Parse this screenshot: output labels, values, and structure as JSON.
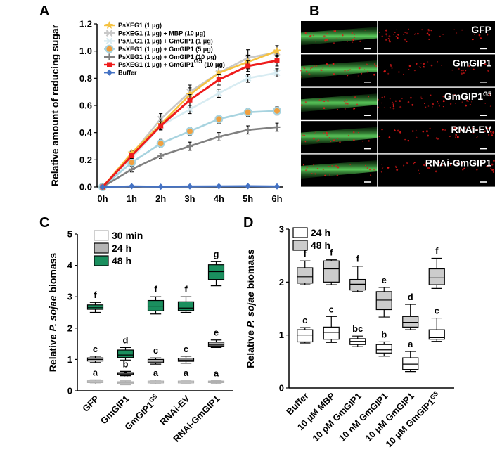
{
  "panel_letters": {
    "a": "A",
    "b": "B",
    "c": "C",
    "d": "D"
  },
  "chart_data": [
    {
      "id": "A",
      "type": "line",
      "ylabel": "Relative amount of reducing sugar",
      "xlabel": "",
      "categories": [
        "0h",
        "1h",
        "2h",
        "3h",
        "4h",
        "5h",
        "6h"
      ],
      "ylim": [
        0,
        1.2
      ],
      "yticks": [
        "0.0",
        "0.2",
        "0.4",
        "0.6",
        "0.8",
        "1.0",
        "1.2"
      ],
      "legend_position": "top-left",
      "series": [
        {
          "name": "PsXEG1 (1 μg)",
          "color": "#f5c242",
          "marker": "star",
          "values": [
            0,
            0.25,
            0.46,
            0.68,
            0.84,
            0.92,
            1.0
          ],
          "errors": [
            0,
            0.02,
            0.04,
            0.05,
            0.05,
            0.05,
            0.04
          ]
        },
        {
          "name": "PsXEG1 (1 μg) + MBP (10 μg)",
          "color": "#c8c8c8",
          "marker": "cross",
          "values": [
            0,
            0.24,
            0.5,
            0.7,
            0.84,
            0.95,
            0.99
          ],
          "errors": [
            0,
            0.02,
            0.04,
            0.05,
            0.06,
            0.06,
            0.05
          ]
        },
        {
          "name": "PsXEG1 (1 μg) + GmGIP1 (1 μg)",
          "color": "#d8ecf2",
          "marker": "cross",
          "values": [
            0,
            0.21,
            0.45,
            0.57,
            0.69,
            0.8,
            0.84
          ],
          "errors": [
            0,
            0.02,
            0.03,
            0.03,
            0.03,
            0.03,
            0.03
          ]
        },
        {
          "name": "PsXEG1 (1 μg) + GmGIP1 (5 μg)",
          "color": "#a7d3df",
          "marker": "circle",
          "values": [
            0,
            0.18,
            0.32,
            0.41,
            0.5,
            0.55,
            0.56
          ],
          "errors": [
            0,
            0.02,
            0.03,
            0.03,
            0.03,
            0.03,
            0.03
          ]
        },
        {
          "name": "PsXEG1 (1 μg) + GmGIP1 (10 μg)",
          "color": "#808080",
          "marker": "plus",
          "values": [
            0,
            0.13,
            0.23,
            0.3,
            0.37,
            0.42,
            0.44
          ],
          "errors": [
            0,
            0.02,
            0.02,
            0.03,
            0.03,
            0.03,
            0.03
          ]
        },
        {
          "name": "PsXEG1 (1 μg) + GmGIP1",
          "name_sup": "G5",
          "name_suffix": " (10 μg)",
          "color": "#ee1c1c",
          "marker": "square",
          "values": [
            0,
            0.23,
            0.45,
            0.64,
            0.79,
            0.89,
            0.93
          ],
          "errors": [
            0,
            0.02,
            0.03,
            0.04,
            0.04,
            0.04,
            0.04
          ]
        },
        {
          "name": "Buffer",
          "color": "#4472c4",
          "marker": "diamond",
          "values": [
            0,
            0.005,
            0.002,
            0.004,
            0.005,
            0.006,
            0.004
          ],
          "errors": [
            0,
            0,
            0,
            0,
            0,
            0,
            0
          ]
        }
      ]
    },
    {
      "id": "C",
      "type": "box",
      "ylabel_pre": "Relative ",
      "ylabel_italic": "P. sojae",
      "ylabel_post": " biomass",
      "ylim": [
        0,
        5
      ],
      "yticks": [
        "0",
        "1",
        "2",
        "3",
        "4",
        "5"
      ],
      "legend_position": "top-left",
      "categories": [
        {
          "label": "GFP"
        },
        {
          "label": "GmGIP1"
        },
        {
          "label": "GmGIP1",
          "sup": "G5"
        },
        {
          "label": "RNAi-EV"
        },
        {
          "label": "RNAi-GmGIP1"
        }
      ],
      "series": [
        {
          "name": "30 min",
          "fill": "#ffffff",
          "stroke": "#b0b0b0",
          "boxes": [
            {
              "min": 0.22,
              "q1": 0.26,
              "median": 0.29,
              "q3": 0.32,
              "max": 0.35,
              "sig": "a"
            },
            {
              "min": 0.19,
              "q1": 0.23,
              "median": 0.26,
              "q3": 0.29,
              "max": 0.32,
              "sig": "a"
            },
            {
              "min": 0.22,
              "q1": 0.25,
              "median": 0.28,
              "q3": 0.31,
              "max": 0.34,
              "sig": "a"
            },
            {
              "min": 0.22,
              "q1": 0.25,
              "median": 0.28,
              "q3": 0.31,
              "max": 0.34,
              "sig": "a"
            },
            {
              "min": 0.23,
              "q1": 0.26,
              "median": 0.29,
              "q3": 0.31,
              "max": 0.33,
              "sig": "a"
            }
          ]
        },
        {
          "name": "24 h",
          "fill": "#b4b4b4",
          "stroke": "#000000",
          "boxes": [
            {
              "min": 0.9,
              "q1": 0.95,
              "median": 1.0,
              "q3": 1.05,
              "max": 1.1,
              "sig": "c"
            },
            {
              "min": 0.48,
              "q1": 0.52,
              "median": 0.56,
              "q3": 0.58,
              "max": 0.62,
              "sig": "b"
            },
            {
              "min": 0.85,
              "q1": 0.9,
              "median": 0.95,
              "q3": 1.0,
              "max": 1.05,
              "sig": "c"
            },
            {
              "min": 0.88,
              "q1": 0.94,
              "median": 0.98,
              "q3": 1.04,
              "max": 1.1,
              "sig": "c"
            },
            {
              "min": 1.38,
              "q1": 1.42,
              "median": 1.46,
              "q3": 1.55,
              "max": 1.62,
              "sig": "e"
            }
          ]
        },
        {
          "name": "48 h",
          "fill": "#1a8f5e",
          "stroke": "#000000",
          "boxes": [
            {
              "min": 2.5,
              "q1": 2.6,
              "median": 2.65,
              "q3": 2.74,
              "max": 2.82,
              "sig": "f"
            },
            {
              "min": 0.98,
              "q1": 1.06,
              "median": 1.14,
              "q3": 1.3,
              "max": 1.38,
              "sig": "d"
            },
            {
              "min": 2.45,
              "q1": 2.55,
              "median": 2.7,
              "q3": 2.88,
              "max": 3.0,
              "sig": "f"
            },
            {
              "min": 2.5,
              "q1": 2.56,
              "median": 2.64,
              "q3": 2.84,
              "max": 3.0,
              "sig": "f"
            },
            {
              "min": 3.35,
              "q1": 3.55,
              "median": 3.8,
              "q3": 4.02,
              "max": 4.12,
              "sig": "g"
            }
          ]
        }
      ]
    },
    {
      "id": "D",
      "type": "box",
      "ylabel_pre": "Relative ",
      "ylabel_italic": "P. sojae",
      "ylabel_post": " biomass",
      "ylim": [
        0,
        3
      ],
      "yticks": [
        "0",
        "1",
        "2",
        "3"
      ],
      "legend_position": "top-left",
      "categories": [
        {
          "label": "Buffer"
        },
        {
          "label": "10 μM MBP"
        },
        {
          "label": "10 pM GmGIP1"
        },
        {
          "label": "10 nM GmGIP1"
        },
        {
          "label": "10 μM GmGIP1"
        },
        {
          "label": "10 μM GmGIP1",
          "sup": "G5"
        }
      ],
      "series": [
        {
          "name": "24 h",
          "fill": "#ffffff",
          "stroke": "#000000",
          "boxes": [
            {
              "min": 0.85,
              "q1": 0.87,
              "median": 1.0,
              "q3": 1.1,
              "max": 1.14,
              "sig": "c"
            },
            {
              "min": 0.86,
              "q1": 0.92,
              "median": 1.05,
              "q3": 1.15,
              "max": 1.35,
              "sig": "c"
            },
            {
              "min": 0.78,
              "q1": 0.82,
              "median": 0.88,
              "q3": 0.93,
              "max": 0.98,
              "sig": "bc"
            },
            {
              "min": 0.6,
              "q1": 0.66,
              "median": 0.72,
              "q3": 0.82,
              "max": 0.87,
              "sig": "b"
            },
            {
              "min": 0.31,
              "q1": 0.35,
              "median": 0.45,
              "q3": 0.57,
              "max": 0.69,
              "sig": "a"
            },
            {
              "min": 0.88,
              "q1": 0.92,
              "median": 0.95,
              "q3": 1.1,
              "max": 1.32,
              "sig": "c"
            }
          ]
        },
        {
          "name": "48 h",
          "fill": "#cccccc",
          "stroke": "#000000",
          "boxes": [
            {
              "min": 1.95,
              "q1": 1.98,
              "median": 2.1,
              "q3": 2.27,
              "max": 2.4,
              "sig": "f"
            },
            {
              "min": 1.95,
              "q1": 2.0,
              "median": 2.25,
              "q3": 2.4,
              "max": 2.42,
              "sig": "f"
            },
            {
              "min": 1.82,
              "q1": 1.85,
              "median": 1.96,
              "q3": 2.05,
              "max": 2.3,
              "sig": "f"
            },
            {
              "min": 1.34,
              "q1": 1.48,
              "median": 1.66,
              "q3": 1.82,
              "max": 1.9,
              "sig": "e"
            },
            {
              "min": 1.1,
              "q1": 1.15,
              "median": 1.24,
              "q3": 1.35,
              "max": 1.58,
              "sig": "d"
            },
            {
              "min": 1.88,
              "q1": 1.95,
              "median": 2.08,
              "q3": 2.25,
              "max": 2.45,
              "sig": "f"
            }
          ]
        }
      ]
    }
  ],
  "images": {
    "rows": [
      {
        "label": "GFP"
      },
      {
        "label": "GmGIP1"
      },
      {
        "label": "GmGIP1",
        "sup": "G5"
      },
      {
        "label": "RNAi-EV"
      },
      {
        "label": "RNAi-GmGIP1"
      }
    ],
    "colors": {
      "background": "#000000",
      "hypha": "#3cb83c",
      "spots": "#e01818",
      "divider": "#ffffff"
    }
  }
}
